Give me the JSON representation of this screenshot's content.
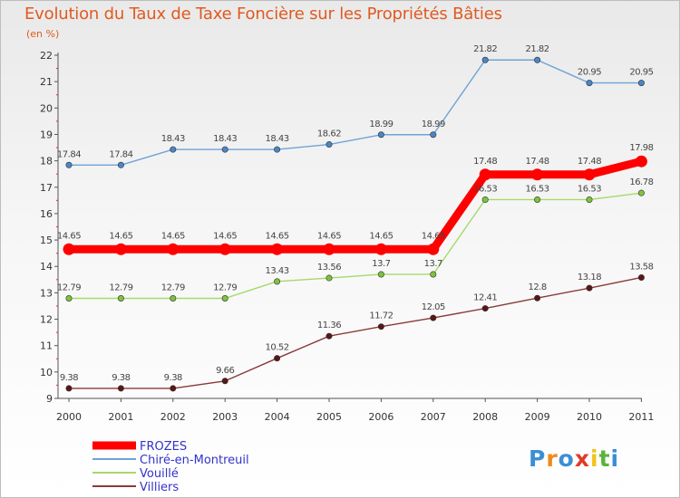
{
  "chart_data": {
    "type": "line",
    "title": "Evolution du Taux de Taxe Foncière sur les Propriétés Bâties",
    "subtitle": "(en %)",
    "xlabel": "",
    "ylabel": "",
    "categories": [
      "2000",
      "2001",
      "2002",
      "2003",
      "2004",
      "2005",
      "2006",
      "2007",
      "2008",
      "2009",
      "2010",
      "2011"
    ],
    "ylim": [
      9,
      22
    ],
    "yticks": [
      9,
      10,
      11,
      12,
      13,
      14,
      15,
      16,
      17,
      18,
      19,
      20,
      21,
      22
    ],
    "grid": false,
    "legend_position": "bottom-left",
    "series": [
      {
        "name": "Chiré-en-Montreuil",
        "color": "#6fa3d6",
        "marker_color": "#4a86c5",
        "values": [
          17.84,
          17.84,
          18.43,
          18.43,
          18.43,
          18.62,
          18.99,
          18.99,
          21.82,
          21.82,
          20.95,
          20.95
        ],
        "labels": [
          "17.84",
          "17.84",
          "18.43",
          "18.43",
          "18.43",
          "18.62",
          "18.99",
          "18.99",
          "21.82",
          "21.82",
          "20.95",
          "20.95"
        ]
      },
      {
        "name": "Vouillé",
        "color": "#a6d96a",
        "marker_color": "#7cc43c",
        "values": [
          12.79,
          12.79,
          12.79,
          12.79,
          13.43,
          13.56,
          13.7,
          13.7,
          16.53,
          16.53,
          16.53,
          16.78
        ],
        "labels": [
          "12.79",
          "12.79",
          "12.79",
          "12.79",
          "13.43",
          "13.56",
          "13.7",
          "13.7",
          "16.53",
          "16.53",
          "16.53",
          "16.78"
        ]
      },
      {
        "name": "Villiers",
        "color": "#8a3a3a",
        "marker_color": "#5a1616",
        "values": [
          9.38,
          9.38,
          9.38,
          9.66,
          10.52,
          11.36,
          11.72,
          12.05,
          12.41,
          12.8,
          13.18,
          13.58
        ],
        "labels": [
          "9.38",
          "9.38",
          "9.38",
          "9.66",
          "10.52",
          "11.36",
          "11.72",
          "12.05",
          "12.41",
          "12.8",
          "13.18",
          "13.58"
        ]
      },
      {
        "name": "FROZES",
        "color": "#ff0000",
        "marker_color": "#ff0000",
        "values": [
          14.65,
          14.65,
          14.65,
          14.65,
          14.65,
          14.65,
          14.65,
          14.65,
          17.48,
          17.48,
          17.48,
          17.98
        ],
        "labels": [
          "14.65",
          "14.65",
          "14.65",
          "14.65",
          "14.65",
          "14.65",
          "14.65",
          "14.65",
          "17.48",
          "17.48",
          "17.48",
          "17.98"
        ]
      }
    ],
    "legend_order": [
      "FROZES",
      "Chiré-en-Montreuil",
      "Vouillé",
      "Villiers"
    ],
    "legend_text_color": "#3333cc"
  },
  "brand": {
    "letters": [
      "P",
      "r",
      "o",
      "x",
      "i",
      "t",
      "i"
    ],
    "colors": [
      "#3a8fd6",
      "#f08a1c",
      "#3a8fd6",
      "#e23a2a",
      "#f0c419",
      "#5ab33a",
      "#3a8fd6"
    ]
  }
}
